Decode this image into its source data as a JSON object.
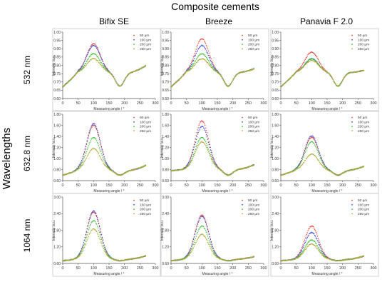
{
  "figure": {
    "title": "Composite cements",
    "column_titles": [
      "Bifix SE",
      "Breeze",
      "Panavia F 2.0"
    ],
    "row_titles": [
      "532 nm",
      "632.8 nm",
      "1064 nm"
    ],
    "row_axis_title": "Wavelengths"
  },
  "colors": {
    "s50": "#e8453c",
    "s100": "#3f4fd6",
    "s200": "#3fc03f",
    "s250": "#b5a93a",
    "frame": "#9a9a9a",
    "text": "#000000",
    "axis_text": "#333333"
  },
  "chart_data": [
    {
      "type": "scatter",
      "title": "Bifix SE",
      "row": "532 nm",
      "xlabel": "Measuring angle / °",
      "ylabel": "Intensity /a.u.",
      "xlim": [
        0,
        300
      ],
      "xticks": [
        0,
        50,
        100,
        150,
        200,
        250,
        300
      ],
      "ylim": [
        0.6,
        1.0
      ],
      "yticks": [
        "0.60",
        "0.65",
        "0.70",
        "0.75",
        "0.80",
        "0.85",
        "0.90",
        "0.95",
        "1.00"
      ],
      "grid": false,
      "legend": "top-right",
      "series": [
        {
          "name": "50 µm",
          "peak": 0.93
        },
        {
          "name": "100 µm",
          "peak": 0.92
        },
        {
          "name": "200 µm",
          "peak": 0.87
        },
        {
          "name": "250 µm",
          "peak": 0.84
        }
      ],
      "baseline": {
        "start": 0.67,
        "shoulder_left": 0.755,
        "valley": 0.675,
        "shoulder_right": 0.755,
        "end": 0.8
      }
    },
    {
      "type": "scatter",
      "title": "Breeze",
      "row": "532 nm",
      "xlabel": "Measuring angle / °",
      "ylabel": "Intensity /a.u.",
      "xlim": [
        0,
        300
      ],
      "xticks": [
        0,
        50,
        100,
        150,
        200,
        250,
        300
      ],
      "ylim": [
        0.6,
        1.0
      ],
      "yticks": [
        "0.60",
        "0.65",
        "0.70",
        "0.75",
        "0.80",
        "0.85",
        "0.90",
        "0.95",
        "1.00"
      ],
      "grid": false,
      "legend": "top-right",
      "series": [
        {
          "name": "50 µm",
          "peak": 0.96
        },
        {
          "name": "100 µm",
          "peak": 0.92
        },
        {
          "name": "200 µm",
          "peak": 0.87
        },
        {
          "name": "250 µm",
          "peak": 0.84
        }
      ],
      "baseline": {
        "start": 0.67,
        "shoulder_left": 0.755,
        "valley": 0.675,
        "shoulder_right": 0.755,
        "end": 0.78
      }
    },
    {
      "type": "scatter",
      "title": "Panavia F 2.0",
      "row": "532 nm",
      "xlabel": "Measuring angle / °",
      "ylabel": "Intensity /a.u.",
      "xlim": [
        0,
        300
      ],
      "xticks": [
        0,
        50,
        100,
        150,
        200,
        250,
        300
      ],
      "ylim": [
        0.6,
        1.0
      ],
      "yticks": [
        "0.60",
        "0.65",
        "0.70",
        "0.75",
        "0.80",
        "0.85",
        "0.90",
        "0.95",
        "1.00"
      ],
      "grid": false,
      "legend": "top-right",
      "series": [
        {
          "name": "50 µm",
          "peak": 0.88
        },
        {
          "name": "100 µm",
          "peak": 0.84
        },
        {
          "name": "200 µm",
          "peak": 0.84
        },
        {
          "name": "250 µm",
          "peak": 0.83
        }
      ],
      "baseline": {
        "start": 0.67,
        "shoulder_left": 0.755,
        "valley": 0.675,
        "shoulder_right": 0.755,
        "end": 0.77
      }
    },
    {
      "type": "scatter",
      "title": "Bifix SE",
      "row": "632.8 nm",
      "xlabel": "Measuring angle / °",
      "ylabel": "Intensity /a.u.",
      "xlim": [
        0,
        300
      ],
      "xticks": [
        0,
        50,
        100,
        150,
        200,
        250,
        300
      ],
      "ylim": [
        0.6,
        1.8
      ],
      "yticks": [
        "0.60",
        "0.80",
        "1.00",
        "1.20",
        "1.40",
        "1.60",
        "1.80"
      ],
      "grid": false,
      "legend": "top-right",
      "series": [
        {
          "name": "50 µm",
          "peak": 1.6
        },
        {
          "name": "100 µm",
          "peak": 1.63
        },
        {
          "name": "200 µm",
          "peak": 1.38
        },
        {
          "name": "250 µm",
          "peak": 1.18
        }
      ],
      "baseline": {
        "start": 0.7,
        "shoulder_left": 0.78,
        "valley": 0.7,
        "shoulder_right": 0.78,
        "end": 0.88
      }
    },
    {
      "type": "scatter",
      "title": "Breeze",
      "row": "632.8 nm",
      "xlabel": "Measuring angle / °",
      "ylabel": "Intensity /a.u.",
      "xlim": [
        0,
        300
      ],
      "xticks": [
        0,
        50,
        100,
        150,
        200,
        250,
        300
      ],
      "ylim": [
        0.6,
        1.8
      ],
      "yticks": [
        "0.60",
        "0.80",
        "1.00",
        "1.20",
        "1.40",
        "1.60",
        "1.80"
      ],
      "grid": false,
      "legend": "top-right",
      "series": [
        {
          "name": "50 µm",
          "peak": 1.68
        },
        {
          "name": "100 µm",
          "peak": 1.58
        },
        {
          "name": "200 µm",
          "peak": 1.38
        },
        {
          "name": "250 µm",
          "peak": 1.3
        }
      ],
      "baseline": {
        "start": 0.78,
        "shoulder_left": 0.8,
        "valley": 0.7,
        "shoulder_right": 0.76,
        "end": 0.85
      }
    },
    {
      "type": "scatter",
      "title": "Panavia F 2.0",
      "row": "632.8 nm",
      "xlabel": "Measuring angle / °",
      "ylabel": "Intensity /a.u.",
      "xlim": [
        0,
        300
      ],
      "xticks": [
        0,
        50,
        100,
        150,
        200,
        250,
        300
      ],
      "ylim": [
        0.6,
        1.8
      ],
      "yticks": [
        "0.60",
        "0.80",
        "1.00",
        "1.20",
        "1.40",
        "1.60",
        "1.80"
      ],
      "grid": false,
      "legend": "top-right",
      "series": [
        {
          "name": "50 µm",
          "peak": 1.38
        },
        {
          "name": "100 µm",
          "peak": 1.41
        },
        {
          "name": "200 µm",
          "peak": 1.3
        },
        {
          "name": "250 µm",
          "peak": 1.08
        }
      ],
      "baseline": {
        "start": 0.7,
        "shoulder_left": 0.78,
        "valley": 0.7,
        "shoulder_right": 0.78,
        "end": 0.86
      }
    },
    {
      "type": "scatter",
      "title": "Bifix SE",
      "row": "1064 nm",
      "xlabel": "Measuring angle / °",
      "ylabel": "Intensity /a.u.",
      "xlim": [
        0,
        300
      ],
      "xticks": [
        0,
        50,
        100,
        150,
        200,
        250,
        300
      ],
      "ylim": [
        0.6,
        3.0
      ],
      "yticks": [
        "0.60",
        "1.20",
        "1.80",
        "2.40",
        "3.00"
      ],
      "grid": false,
      "legend": "top-right",
      "series": [
        {
          "name": "50 µm",
          "peak": 2.45
        },
        {
          "name": "100 µm",
          "peak": 2.5
        },
        {
          "name": "200 µm",
          "peak": 2.15
        },
        {
          "name": "250 µm",
          "peak": 1.85
        }
      ],
      "baseline": {
        "start": 0.7,
        "shoulder_left": 0.75,
        "valley": 0.7,
        "shoulder_right": 0.72,
        "end": 0.85
      }
    },
    {
      "type": "scatter",
      "title": "Breeze",
      "row": "1064 nm",
      "xlabel": "Measuring angle / °",
      "ylabel": "Intensity /a.u.",
      "xlim": [
        0,
        300
      ],
      "xticks": [
        0,
        50,
        100,
        150,
        200,
        250,
        300
      ],
      "ylim": [
        0.6,
        3.0
      ],
      "yticks": [
        "0.60",
        "1.20",
        "1.80",
        "2.40",
        "3.00"
      ],
      "grid": false,
      "legend": "top-right",
      "series": [
        {
          "name": "50 µm",
          "peak": 2.35
        },
        {
          "name": "100 µm",
          "peak": 2.3
        },
        {
          "name": "200 µm",
          "peak": 1.95
        },
        {
          "name": "250 µm",
          "peak": 1.65
        }
      ],
      "baseline": {
        "start": 0.7,
        "shoulder_left": 0.75,
        "valley": 0.7,
        "shoulder_right": 0.72,
        "end": 0.82
      }
    },
    {
      "type": "scatter",
      "title": "Panavia F 2.0",
      "row": "1064 nm",
      "xlabel": "Measuring angle / °",
      "ylabel": "Intensity /a.u.",
      "xlim": [
        0,
        300
      ],
      "xticks": [
        0,
        50,
        100,
        150,
        200,
        250,
        300
      ],
      "ylim": [
        0.6,
        3.0
      ],
      "yticks": [
        "0.60",
        "1.20",
        "1.80",
        "2.40",
        "3.00"
      ],
      "grid": false,
      "legend": "top-right",
      "series": [
        {
          "name": "50 µm",
          "peak": 1.95
        },
        {
          "name": "100 µm",
          "peak": 1.72
        },
        {
          "name": "200 µm",
          "peak": 1.45
        },
        {
          "name": "250 µm",
          "peak": 1.3
        }
      ],
      "baseline": {
        "start": 0.7,
        "shoulder_left": 0.74,
        "valley": 0.7,
        "shoulder_right": 0.72,
        "end": 0.85
      }
    }
  ]
}
